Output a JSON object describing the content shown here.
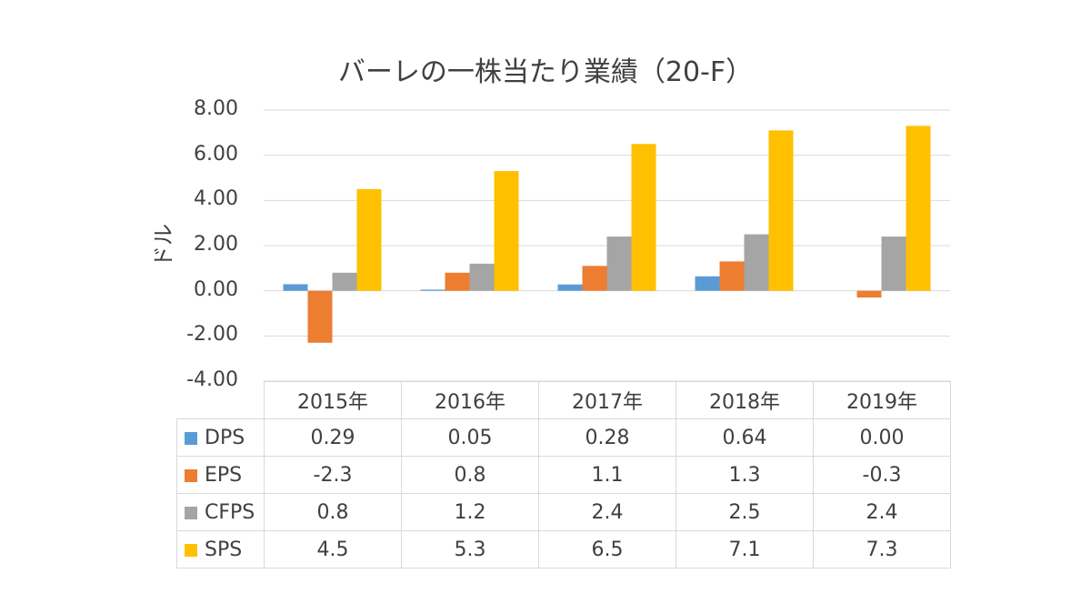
{
  "chart_data": {
    "type": "bar",
    "title": "バーレの一株当たり業績（20-F）",
    "xlabel": "",
    "ylabel": "ドル",
    "ylim": [
      -4,
      8
    ],
    "yticks": [
      "8.00",
      "6.00",
      "4.00",
      "2.00",
      "0.00",
      "-2.00",
      "-4.00"
    ],
    "categories": [
      "2015年",
      "2016年",
      "2017年",
      "2018年",
      "2019年"
    ],
    "series": [
      {
        "name": "DPS",
        "color": "#5b9bd5",
        "values": [
          0.29,
          0.05,
          0.28,
          0.64,
          0.0
        ],
        "labels": [
          "0.29",
          "0.05",
          "0.28",
          "0.64",
          "0.00"
        ]
      },
      {
        "name": "EPS",
        "color": "#ed7d31",
        "values": [
          -2.3,
          0.8,
          1.1,
          1.3,
          -0.3
        ],
        "labels": [
          "-2.3",
          "0.8",
          "1.1",
          "1.3",
          "-0.3"
        ]
      },
      {
        "name": "CFPS",
        "color": "#a5a5a5",
        "values": [
          0.8,
          1.2,
          2.4,
          2.5,
          2.4
        ],
        "labels": [
          "0.8",
          "1.2",
          "2.4",
          "2.5",
          "2.4"
        ]
      },
      {
        "name": "SPS",
        "color": "#ffc000",
        "values": [
          4.5,
          5.3,
          6.5,
          7.1,
          7.3
        ],
        "labels": [
          "4.5",
          "5.3",
          "6.5",
          "7.1",
          "7.3"
        ]
      }
    ],
    "grid": true,
    "legend": "data-table"
  }
}
